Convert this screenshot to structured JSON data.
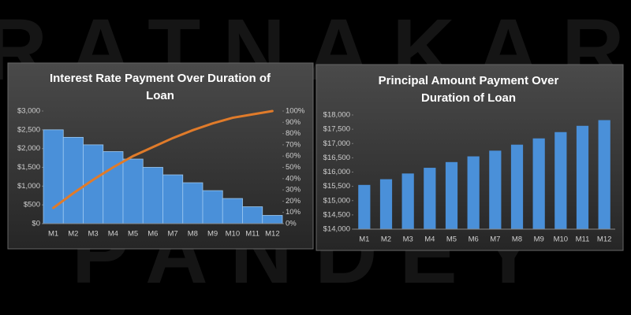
{
  "watermark": [
    "RATNAKAR",
    "PANDEY"
  ],
  "chart_data": [
    {
      "type": "bar",
      "title": [
        "Interest Rate Payment Over Duration of",
        "Loan"
      ],
      "categories": [
        "M1",
        "M2",
        "M3",
        "M4",
        "M5",
        "M6",
        "M7",
        "M8",
        "M9",
        "M10",
        "M11",
        "M12"
      ],
      "series": [
        {
          "color": "#4a90d9",
          "values": [
            2500,
            2300,
            2100,
            1920,
            1720,
            1500,
            1300,
            1090,
            880,
            670,
            450,
            220
          ]
        },
        {
          "type": "line",
          "axis": "y2",
          "color": "#e07b2a",
          "values": [
            14,
            27,
            39,
            50,
            60,
            68,
            76,
            83,
            89,
            94,
            97,
            100
          ]
        }
      ],
      "ylim": [
        0,
        3000
      ],
      "yticks": [
        {
          "value": 0,
          "label": "$0"
        },
        {
          "value": 500,
          "label": "$500"
        },
        {
          "value": 1000,
          "label": "$1,000"
        },
        {
          "value": 1500,
          "label": "$1,500"
        },
        {
          "value": 2000,
          "label": "$2,000"
        },
        {
          "value": 2500,
          "label": "$2,500"
        },
        {
          "value": 3000,
          "label": "$3,000"
        }
      ],
      "y2lim": [
        0,
        100
      ],
      "y2ticks": [
        {
          "value": 0,
          "label": "0%"
        },
        {
          "value": 10,
          "label": "10%"
        },
        {
          "value": 20,
          "label": "20%"
        },
        {
          "value": 30,
          "label": "30%"
        },
        {
          "value": 40,
          "label": "40%"
        },
        {
          "value": 50,
          "label": "50%"
        },
        {
          "value": 60,
          "label": "60%"
        },
        {
          "value": 70,
          "label": "70%"
        },
        {
          "value": 80,
          "label": "80%"
        },
        {
          "value": 90,
          "label": "90%"
        },
        {
          "value": 100,
          "label": "100%"
        }
      ]
    },
    {
      "type": "bar",
      "title": [
        "Principal Amount Payment Over",
        "Duration of Loan"
      ],
      "categories": [
        "M1",
        "M2",
        "M3",
        "M4",
        "M5",
        "M6",
        "M7",
        "M8",
        "M9",
        "M10",
        "M11",
        "M12"
      ],
      "series": [
        {
          "color": "#4a90d9",
          "values": [
            15550,
            15750,
            15950,
            16150,
            16350,
            16550,
            16750,
            16960,
            17180,
            17400,
            17620,
            17820
          ]
        }
      ],
      "ylim": [
        14000,
        18000
      ],
      "yticks": [
        {
          "value": 14000,
          "label": "$14,000"
        },
        {
          "value": 14500,
          "label": "$14,500"
        },
        {
          "value": 15000,
          "label": "$15,000"
        },
        {
          "value": 15500,
          "label": "$15,500"
        },
        {
          "value": 16000,
          "label": "$16,000"
        },
        {
          "value": 16500,
          "label": "$16,500"
        },
        {
          "value": 17000,
          "label": "$17,000"
        },
        {
          "value": 17500,
          "label": "$17,500"
        },
        {
          "value": 18000,
          "label": "$18,000"
        }
      ]
    }
  ]
}
